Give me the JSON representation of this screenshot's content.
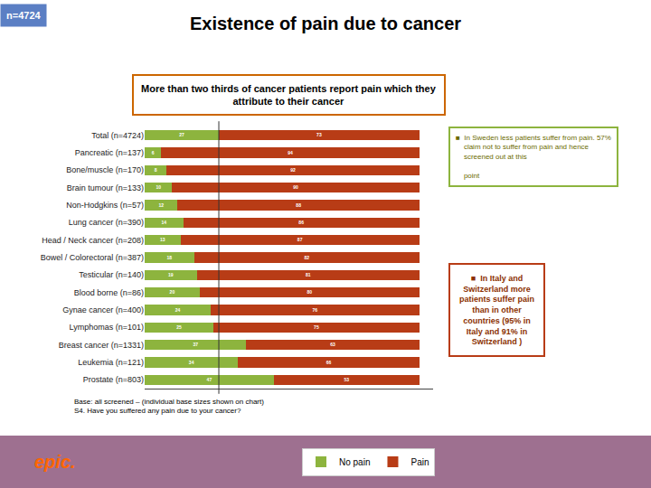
{
  "chart_data": {
    "type": "bar",
    "orientation": "horizontal",
    "stacked": true,
    "data_labels": true,
    "title": "Existence of pain due to cancer",
    "subtitle": "More than two thirds of cancer patients report pain which they\nattribute to their cancer",
    "categories": [
      "Total (n=4724)",
      "Pancreatic (n=137)",
      "Bone/muscle (n=170)",
      "Brain tumour (n=133)",
      "Non-Hodgkins (n=57)",
      "Lung cancer (n=390)",
      "Head / Neck cancer (n=208)",
      "Bowel / Colorectoral (n=387)",
      "Testicular (n=140)",
      "Blood borne (n=86)",
      "Gynae cancer (n=400)",
      "Lymphomas (n=101)",
      "Breast cancer (n=1331)",
      "Leukemia (n=121)",
      "Prostate (n=803)"
    ],
    "series": [
      {
        "name": "No pain",
        "color": "#8db43e",
        "values": [
          27,
          6,
          8,
          10,
          12,
          14,
          13,
          18,
          19,
          20,
          24,
          25,
          37,
          34,
          47
        ]
      },
      {
        "name": "Pain",
        "color": "#b83c16",
        "values": [
          73,
          94,
          92,
          90,
          88,
          86,
          87,
          82,
          81,
          80,
          76,
          75,
          63,
          66,
          53
        ]
      }
    ],
    "xlim": [
      0,
      105
    ],
    "xticks": [],
    "tick_labels": "y",
    "grid": false,
    "legend": "bottom",
    "annotations": [
      "n=4724",
      "■  In Sweden less patients suffer from pain. 57%\n    claim not to suffer from pain and hence\n    screened out at this\n\n    point",
      "■  In Italy and\nSwitzerland more\npatients suffer pain\nthan in other\ncountries (95% in\nItaly and 91% in\nSwitzerland )",
      "Base: all screened – (individual base sizes shown on chart)\nS4. Have you suffered any pain due to your cancer?",
      "epic."
    ]
  }
}
